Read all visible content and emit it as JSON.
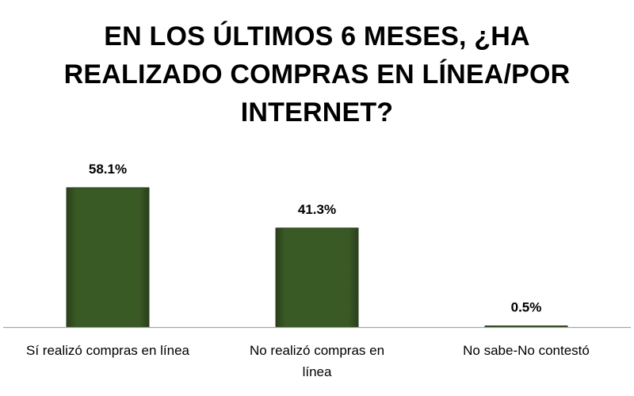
{
  "chart_data": {
    "type": "bar",
    "title_lines": [
      "EN LOS ÚLTIMOS 6 MESES, ¿HA",
      "REALIZADO COMPRAS EN LÍNEA/POR",
      "INTERNET?"
    ],
    "categories": [
      [
        "Sí realizó compras en línea"
      ],
      [
        "No realizó compras en",
        "línea"
      ],
      [
        "No sabe-No contestó"
      ]
    ],
    "values": [
      58.1,
      41.3,
      0.5
    ],
    "data_labels": [
      "58.1%",
      "41.3%",
      "0.5%"
    ],
    "ylim": [
      0,
      58.1
    ],
    "xlabel": "",
    "ylabel": "",
    "grid": false,
    "legend": "none"
  },
  "colors": {
    "bar_fill": "#3a5a25",
    "bar_edge": "#2a3f1b",
    "axis": "#a6a6a6",
    "text": "#000000"
  }
}
